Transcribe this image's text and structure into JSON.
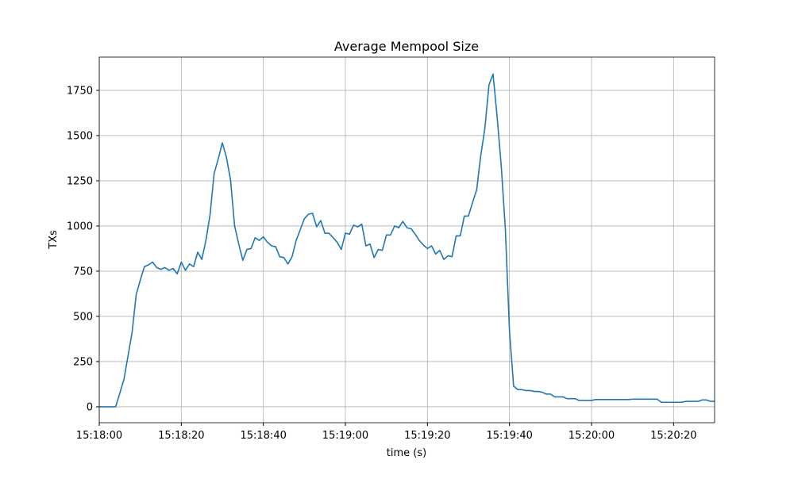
{
  "chart_data": {
    "type": "line",
    "title": "Average Mempool Size",
    "x_label": "time (s)",
    "y_label": "TXs",
    "color": "#1f77b4",
    "grid": true,
    "xlim": [
      "15:18:00",
      "15:20:30"
    ],
    "xticks": [
      "15:18:00",
      "15:18:20",
      "15:18:40",
      "15:19:00",
      "15:19:20",
      "15:19:40",
      "15:20:00",
      "15:20:20"
    ],
    "ylim": [
      -88,
      1934
    ],
    "yticks": [
      0,
      250,
      500,
      750,
      1000,
      1250,
      1500,
      1750
    ],
    "x": [
      "15:18:00",
      "15:18:01",
      "15:18:02",
      "15:18:03",
      "15:18:04",
      "15:18:05",
      "15:18:06",
      "15:18:07",
      "15:18:08",
      "15:18:09",
      "15:18:10",
      "15:18:11",
      "15:18:12",
      "15:18:13",
      "15:18:14",
      "15:18:15",
      "15:18:16",
      "15:18:17",
      "15:18:18",
      "15:18:19",
      "15:18:20",
      "15:18:21",
      "15:18:22",
      "15:18:23",
      "15:18:24",
      "15:18:25",
      "15:18:26",
      "15:18:27",
      "15:18:28",
      "15:18:29",
      "15:18:30",
      "15:18:31",
      "15:18:32",
      "15:18:33",
      "15:18:34",
      "15:18:35",
      "15:18:36",
      "15:18:37",
      "15:18:38",
      "15:18:39",
      "15:18:40",
      "15:18:41",
      "15:18:42",
      "15:18:43",
      "15:18:44",
      "15:18:45",
      "15:18:46",
      "15:18:47",
      "15:18:48",
      "15:18:49",
      "15:18:50",
      "15:18:51",
      "15:18:52",
      "15:18:53",
      "15:18:54",
      "15:18:55",
      "15:18:56",
      "15:18:57",
      "15:18:58",
      "15:18:59",
      "15:19:00",
      "15:19:01",
      "15:19:02",
      "15:19:03",
      "15:19:04",
      "15:19:05",
      "15:19:06",
      "15:19:07",
      "15:19:08",
      "15:19:09",
      "15:19:10",
      "15:19:11",
      "15:19:12",
      "15:19:13",
      "15:19:14",
      "15:19:15",
      "15:19:16",
      "15:19:17",
      "15:19:18",
      "15:19:19",
      "15:19:20",
      "15:19:21",
      "15:19:22",
      "15:19:23",
      "15:19:24",
      "15:19:25",
      "15:19:26",
      "15:19:27",
      "15:19:28",
      "15:19:29",
      "15:19:30",
      "15:19:31",
      "15:19:32",
      "15:19:33",
      "15:19:34",
      "15:19:35",
      "15:19:36",
      "15:19:37",
      "15:19:38",
      "15:19:39",
      "15:19:40",
      "15:19:41",
      "15:19:42",
      "15:19:43",
      "15:19:44",
      "15:19:45",
      "15:19:46",
      "15:19:47",
      "15:19:48",
      "15:19:49",
      "15:19:50",
      "15:19:51",
      "15:19:52",
      "15:19:53",
      "15:19:54",
      "15:19:55",
      "15:19:56",
      "15:19:57",
      "15:19:58",
      "15:19:59",
      "15:20:00",
      "15:20:01",
      "15:20:02",
      "15:20:03",
      "15:20:04",
      "15:20:05",
      "15:20:06",
      "15:20:07",
      "15:20:08",
      "15:20:09",
      "15:20:10",
      "15:20:11",
      "15:20:12",
      "15:20:13",
      "15:20:14",
      "15:20:15",
      "15:20:16",
      "15:20:17",
      "15:20:18",
      "15:20:19",
      "15:20:20",
      "15:20:21",
      "15:20:22",
      "15:20:23",
      "15:20:24",
      "15:20:25",
      "15:20:26",
      "15:20:27",
      "15:20:28",
      "15:20:29",
      "15:20:30"
    ],
    "values": [
      0,
      0,
      0,
      0,
      0,
      75,
      150,
      280,
      410,
      620,
      700,
      775,
      785,
      800,
      770,
      760,
      770,
      755,
      765,
      735,
      800,
      755,
      790,
      775,
      855,
      815,
      920,
      1060,
      1290,
      1370,
      1460,
      1380,
      1255,
      1000,
      900,
      810,
      870,
      875,
      935,
      920,
      940,
      910,
      890,
      885,
      830,
      825,
      790,
      830,
      920,
      980,
      1040,
      1065,
      1070,
      995,
      1030,
      960,
      960,
      935,
      910,
      870,
      960,
      955,
      1005,
      995,
      1010,
      890,
      900,
      825,
      870,
      865,
      950,
      950,
      1000,
      990,
      1025,
      990,
      985,
      955,
      920,
      895,
      875,
      890,
      845,
      865,
      815,
      835,
      830,
      945,
      945,
      1055,
      1055,
      1130,
      1200,
      1390,
      1540,
      1780,
      1840,
      1600,
      1330,
      980,
      420,
      115,
      95,
      95,
      90,
      90,
      85,
      85,
      80,
      70,
      70,
      55,
      55,
      55,
      45,
      45,
      45,
      35,
      35,
      35,
      35,
      40,
      40,
      40,
      40,
      40,
      40,
      40,
      40,
      40,
      42,
      42,
      42,
      42,
      42,
      42,
      42,
      25,
      25,
      25,
      25,
      25,
      25,
      30,
      30,
      30,
      30,
      38,
      38,
      30,
      30
    ]
  }
}
